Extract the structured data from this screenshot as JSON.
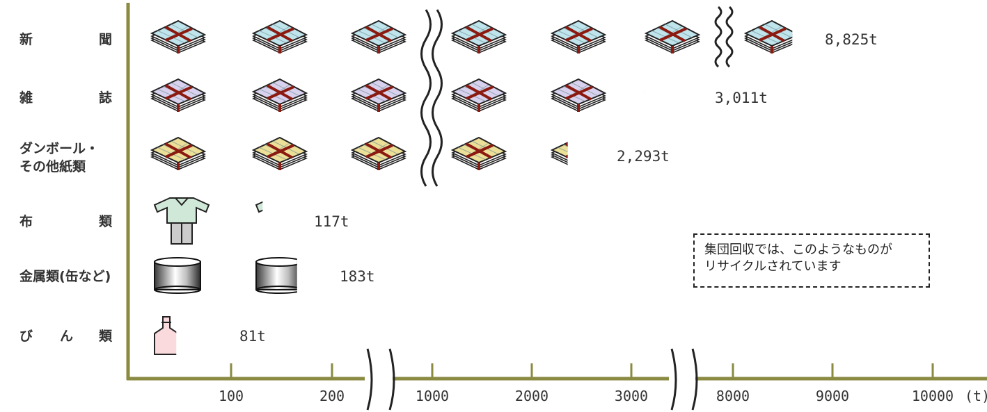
{
  "chart_data": {
    "type": "bar",
    "categories": [
      [
        "新",
        "聞"
      ],
      [
        "雑",
        "誌"
      ],
      [
        "ダンボール・",
        "その他紙類"
      ],
      [
        "布",
        "類"
      ],
      [
        "金属類(缶など)"
      ],
      [
        "び",
        "ん",
        "類"
      ]
    ],
    "values": [
      8825,
      3011,
      2293,
      117,
      183,
      81
    ],
    "value_labels": [
      "8,825t",
      "3,011t",
      "2,293t",
      "117t",
      "183t",
      "81t"
    ],
    "icons": [
      "newspaper-bundle-icon",
      "magazine-bundle-icon",
      "cardboard-bundle-icon",
      "cloth-shirt-icon",
      "metal-can-icon",
      "glass-bottle-icon"
    ],
    "icon_colors": [
      "#bfe4ec",
      "#d9d2ee",
      "#ecdf98",
      "#cfe8d8",
      "#888888",
      "#fadadd"
    ],
    "x_ticks": [
      "100",
      "200",
      "1000",
      "2000",
      "3000",
      "8000",
      "9000",
      "10000"
    ],
    "x_unit": "(t)",
    "axis_breaks": [
      "200-1000",
      "3000-8000"
    ],
    "annotation": [
      "集団回収では、このようなものが",
      "リサイクルされています"
    ],
    "axis_color": "#8a8a42",
    "strap_color": "#8b1a10"
  }
}
